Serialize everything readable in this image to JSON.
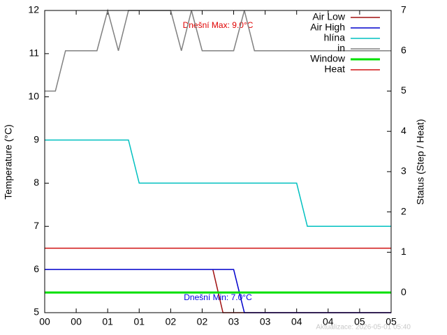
{
  "chart_data": {
    "type": "line",
    "y_label": "Temperature (°C)",
    "y2_label": "Status (Step / Heat)",
    "annotations": [
      {
        "text": "Dnešní Max: 9.0°C",
        "color": "#e00000"
      },
      {
        "text": "Dnešní Min: 7.0°C",
        "color": "#0000e0"
      }
    ],
    "footer": "Aktualizace: 2026-05-01 05:40",
    "xlim": [
      0,
      5.5
    ],
    "xticks": [
      {
        "value": 0,
        "label": "00"
      },
      {
        "value": 0.5,
        "label": "00"
      },
      {
        "value": 1,
        "label": "01"
      },
      {
        "value": 1.5,
        "label": "01"
      },
      {
        "value": 2,
        "label": "02"
      },
      {
        "value": 2.5,
        "label": "02"
      },
      {
        "value": 3,
        "label": "03"
      },
      {
        "value": 3.5,
        "label": "03"
      },
      {
        "value": 4,
        "label": "04"
      },
      {
        "value": 4.5,
        "label": "04"
      },
      {
        "value": 5,
        "label": "05"
      },
      {
        "value": 5.5,
        "label": "05"
      }
    ],
    "ylim": [
      5,
      12
    ],
    "yticks": [
      5,
      6,
      7,
      8,
      9,
      10,
      11,
      12
    ],
    "y2lim": [
      -0.5,
      7
    ],
    "y2ticks": [
      0,
      1,
      2,
      3,
      4,
      5,
      6,
      7
    ],
    "legend": "top-right",
    "series": [
      {
        "name": "Air Low",
        "color": "#a01010",
        "width": 1.5,
        "x": [
          2.67,
          2.83,
          5.5
        ],
        "values": [
          6,
          5,
          5
        ]
      },
      {
        "name": "Air High",
        "color": "#0000cc",
        "width": 1.5,
        "x": [
          0,
          3.0,
          3.17,
          5.5
        ],
        "values": [
          6,
          6,
          5,
          5
        ]
      },
      {
        "name": "hlína",
        "color": "#00c0c0",
        "width": 1.5,
        "x": [
          0,
          1.33,
          1.5,
          4.0,
          4.17,
          5.5
        ],
        "values": [
          9,
          9,
          8,
          8,
          7,
          7
        ]
      },
      {
        "name": "in",
        "color": "#808080",
        "width": 1.5,
        "axis": "y2",
        "x": [
          0,
          0.17,
          0.33,
          0.83,
          1.0,
          1.17,
          1.33,
          2.0,
          2.17,
          2.33,
          2.5,
          3.0,
          3.17,
          3.33,
          5.5
        ],
        "values": [
          5,
          5,
          6,
          6,
          7,
          6,
          7,
          7,
          6,
          7,
          6,
          6,
          7,
          6,
          6
        ]
      },
      {
        "name": "Window",
        "color": "#00e000",
        "width": 3,
        "axis": "y2",
        "x": [
          0,
          5.5
        ],
        "values": [
          0,
          0
        ]
      },
      {
        "name": "Heat",
        "color": "#d01010",
        "width": 1.5,
        "axis": "y2",
        "x": [
          0,
          5.5
        ],
        "values": [
          1.1,
          1.1
        ]
      }
    ]
  }
}
